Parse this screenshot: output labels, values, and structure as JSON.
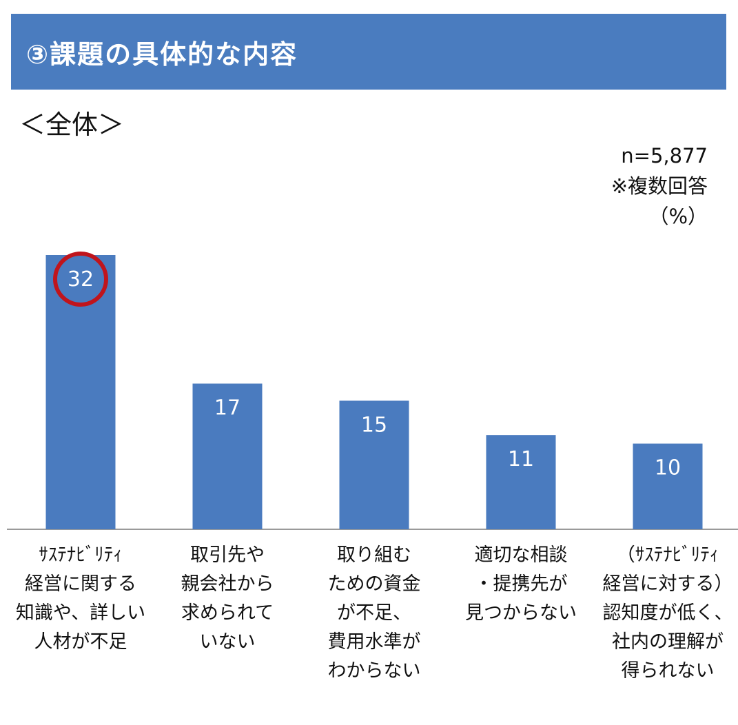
{
  "header": {
    "title": "③課題の具体的な内容"
  },
  "subtitle": "＜全体＞",
  "notes": {
    "sample": "n=5,877",
    "multiple": "※複数回答",
    "unit": "（%）"
  },
  "colors": {
    "banner": "#4a7cbf",
    "bar": "#4a7bbf",
    "highlight": "#c0141c"
  },
  "chart_data": {
    "type": "bar",
    "categories": [
      [
        "ｻｽﾃﾅﾋﾞﾘﾃｨ",
        "経営に関する",
        "知識や、詳しい",
        "人材が不足"
      ],
      [
        "取引先や",
        "親会社から",
        "求められて",
        "いない"
      ],
      [
        "取り組む",
        "ための資金",
        "が不足、",
        "費用水準が",
        "わからない"
      ],
      [
        "適切な相談",
        "・提携先が",
        "見つからない"
      ],
      [
        "（ｻｽﾃﾅﾋﾞﾘﾃｨ",
        "経営に対する）",
        "認知度が低く、",
        "社内の理解が",
        "得られない"
      ]
    ],
    "values": [
      32,
      17,
      15,
      11,
      10
    ],
    "highlighted_index": 0,
    "ylim": [
      0,
      35
    ],
    "grid": false,
    "legend": "none"
  }
}
